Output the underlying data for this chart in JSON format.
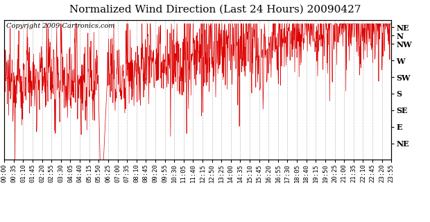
{
  "title": "Normalized Wind Direction (Last 24 Hours) 20090427",
  "copyright": "Copyright 2009 Cartronics.com",
  "line_color": "#dd0000",
  "background_color": "#ffffff",
  "grid_color": "#aaaaaa",
  "y_labels": [
    "NE",
    "N",
    "NW",
    "W",
    "SW",
    "S",
    "SE",
    "E",
    "NE"
  ],
  "y_values": [
    360,
    337.5,
    315,
    270,
    225,
    180,
    135,
    90,
    45
  ],
  "ylim": [
    0,
    380
  ],
  "title_fontsize": 11,
  "copyright_fontsize": 7,
  "axis_label_fontsize": 8,
  "tick_fontsize": 6.5,
  "x_ticks_labels": [
    "00:00",
    "00:35",
    "01:10",
    "01:45",
    "02:20",
    "02:55",
    "03:30",
    "04:05",
    "04:40",
    "05:15",
    "05:50",
    "06:25",
    "07:00",
    "07:35",
    "08:10",
    "08:45",
    "09:20",
    "09:55",
    "10:30",
    "11:05",
    "11:40",
    "12:15",
    "12:50",
    "13:25",
    "14:00",
    "14:35",
    "15:10",
    "15:45",
    "16:20",
    "16:55",
    "17:30",
    "18:05",
    "18:40",
    "19:15",
    "19:50",
    "20:25",
    "21:00",
    "21:35",
    "22:10",
    "22:45",
    "23:20",
    "23:55"
  ]
}
